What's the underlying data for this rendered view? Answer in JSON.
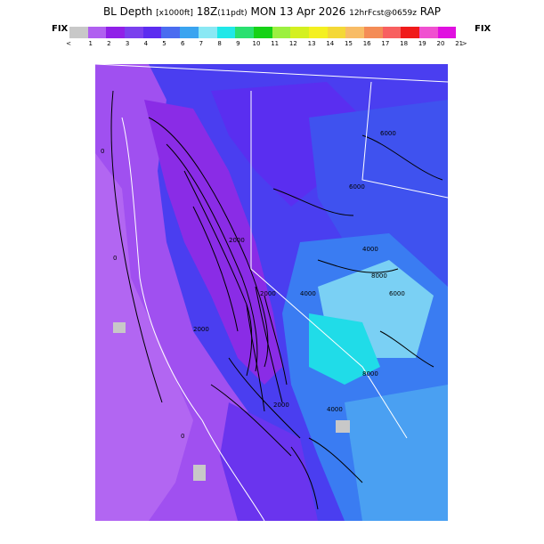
{
  "header": {
    "title_main_a": "BL Depth",
    "title_small_a": "[x1000ft]",
    "title_main_b": "18Z",
    "title_small_b": "(11pdt)",
    "title_main_c": "MON 13 Apr 2026",
    "title_small_c": "12hrFcst@0659z",
    "title_main_d": "RAP"
  },
  "legend": {
    "fix_left": "FIX",
    "fix_right": "FIX",
    "colors": [
      "#c8c8c8",
      "#b060f0",
      "#9020e8",
      "#7a40ee",
      "#5c2cf0",
      "#4a6cf0",
      "#3aa4f0",
      "#8ae8f4",
      "#20e8e8",
      "#2ae070",
      "#16d216",
      "#9cf040",
      "#d4f020",
      "#f4f020",
      "#f4d836",
      "#f8bc66",
      "#f48c56",
      "#f86060",
      "#f01a1a",
      "#f050d0",
      "#e010e0"
    ],
    "ticks": [
      "<",
      "1",
      "2",
      "3",
      "4",
      "5",
      "6",
      "7",
      "8",
      "9",
      "10",
      "11",
      "12",
      "13",
      "14",
      "15",
      "16",
      "17",
      "18",
      "19",
      "20",
      "21",
      ">"
    ]
  },
  "map": {
    "contour_labels": [
      "0",
      "0",
      "0",
      "2000",
      "2000",
      "2000",
      "2000",
      "4000",
      "4000",
      "4000",
      "6000",
      "6000",
      "6000",
      "8000",
      "8000"
    ]
  }
}
